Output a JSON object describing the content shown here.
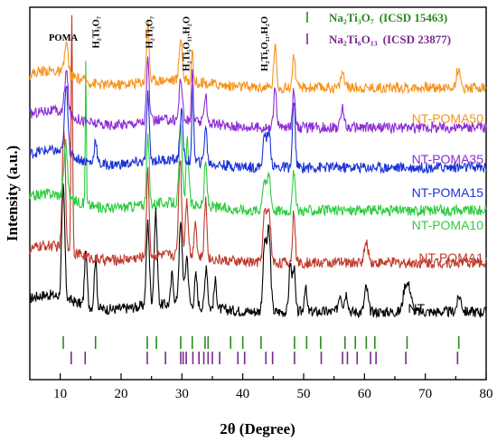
{
  "chart_data": {
    "type": "line",
    "xlabel": "2θ (Degree)",
    "ylabel": "Intensity (a.u.)",
    "xlim": [
      5,
      80
    ],
    "x_ticks": [
      10,
      20,
      30,
      40,
      50,
      60,
      70,
      80
    ],
    "grid": false,
    "series": [
      {
        "name": "NT",
        "color": "#000000",
        "baseline": 0.0,
        "noise": 0.35,
        "peaks": [
          [
            10.5,
            3.6,
            0.35
          ],
          [
            14.2,
            1.8,
            0.3
          ],
          [
            15.8,
            1.6,
            0.3
          ],
          [
            24.4,
            2.7,
            0.35
          ],
          [
            25.7,
            3.0,
            0.35
          ],
          [
            28.4,
            1.0,
            0.3
          ],
          [
            29.8,
            2.6,
            0.4
          ],
          [
            30.8,
            1.6,
            0.35
          ],
          [
            32.3,
            1.0,
            0.3
          ],
          [
            34.0,
            1.4,
            0.3
          ],
          [
            35.5,
            0.9,
            0.3
          ],
          [
            43.6,
            2.2,
            0.4
          ],
          [
            44.3,
            2.6,
            0.4
          ],
          [
            47.8,
            1.6,
            0.3
          ],
          [
            48.4,
            1.5,
            0.3
          ],
          [
            50.3,
            0.8,
            0.3
          ],
          [
            56.0,
            0.6,
            0.4
          ],
          [
            57.0,
            0.6,
            0.4
          ],
          [
            60.3,
            0.8,
            0.4
          ],
          [
            66.7,
            0.8,
            0.5
          ],
          [
            67.4,
            0.7,
            0.5
          ],
          [
            75.6,
            0.5,
            0.5
          ]
        ]
      },
      {
        "name": "NT-POMA1",
        "color": "#c0392b",
        "baseline": 1.6,
        "noise": 0.35,
        "peaks": [
          [
            10.6,
            4.0,
            0.35
          ],
          [
            11.9,
            7.7,
            0.18
          ],
          [
            24.4,
            2.8,
            0.3
          ],
          [
            29.7,
            3.2,
            0.35
          ],
          [
            30.8,
            1.8,
            0.35
          ],
          [
            32.2,
            1.2,
            0.3
          ],
          [
            33.9,
            1.9,
            0.3
          ],
          [
            43.6,
            1.6,
            0.4
          ],
          [
            44.3,
            1.7,
            0.4
          ],
          [
            48.4,
            1.7,
            0.3
          ],
          [
            60.3,
            0.6,
            0.5
          ]
        ]
      },
      {
        "name": "NT-POMA10",
        "color": "#2ecc40",
        "baseline": 3.3,
        "noise": 0.35,
        "peaks": [
          [
            10.9,
            1.8,
            0.4
          ],
          [
            14.2,
            4.8,
            0.12
          ],
          [
            24.4,
            2.2,
            0.3
          ],
          [
            29.8,
            2.4,
            0.35
          ],
          [
            30.9,
            2.1,
            0.3
          ],
          [
            33.9,
            1.4,
            0.3
          ],
          [
            43.5,
            1.0,
            0.4
          ],
          [
            44.3,
            1.2,
            0.4
          ],
          [
            48.4,
            1.3,
            0.3
          ]
        ]
      },
      {
        "name": "NT-POMA15",
        "color": "#1c33d6",
        "baseline": 4.7,
        "noise": 0.35,
        "peaks": [
          [
            11.0,
            2.2,
            0.4
          ],
          [
            15.8,
            0.8,
            0.3
          ],
          [
            24.4,
            2.2,
            0.3
          ],
          [
            29.9,
            1.6,
            0.35
          ],
          [
            31.8,
            2.6,
            0.2
          ],
          [
            33.9,
            1.2,
            0.3
          ],
          [
            43.6,
            1.0,
            0.4
          ],
          [
            44.3,
            1.1,
            0.4
          ],
          [
            48.4,
            2.2,
            0.3
          ]
        ]
      },
      {
        "name": "NT-POMA35",
        "color": "#8e2cd6",
        "baseline": 6.0,
        "noise": 0.35,
        "peaks": [
          [
            11.0,
            1.4,
            0.4
          ],
          [
            24.4,
            2.0,
            0.3
          ],
          [
            29.8,
            1.4,
            0.35
          ],
          [
            31.7,
            1.7,
            0.2
          ],
          [
            33.9,
            1.0,
            0.3
          ],
          [
            45.3,
            1.4,
            0.3
          ],
          [
            48.4,
            1.3,
            0.3
          ],
          [
            56.4,
            0.6,
            0.4
          ]
        ]
      },
      {
        "name": "NT-POMA50",
        "color": "#f7941d",
        "baseline": 7.3,
        "noise": 0.35,
        "peaks": [
          [
            11.0,
            1.0,
            0.4
          ],
          [
            24.4,
            1.9,
            0.3
          ],
          [
            29.8,
            1.4,
            0.35
          ],
          [
            31.7,
            1.1,
            0.2
          ],
          [
            45.3,
            1.4,
            0.3
          ],
          [
            48.4,
            1.1,
            0.3
          ],
          [
            56.4,
            0.5,
            0.4
          ],
          [
            75.4,
            0.6,
            0.4
          ]
        ]
      }
    ],
    "phase_annotations": [
      {
        "text": "POMA",
        "x": 10.5
      },
      {
        "text": "H₂Ti₃O₇",
        "x": 15.8
      },
      {
        "text": "H₂Ti₃O₇",
        "x": 24.5
      },
      {
        "text": "H₂Ti₅O₁₁.H₂O",
        "x": 30.6
      },
      {
        "text": "H₂Ti₅O₁₁.H₂O",
        "x": 43.5
      }
    ],
    "reference_patterns": [
      {
        "name": "Na₂Ti₃O₇",
        "source": "(ICSD 15463)",
        "color": "#2b8a1f",
        "positions": [
          10.5,
          15.8,
          24.3,
          25.8,
          29.8,
          31.7,
          33.8,
          34.3,
          38.0,
          40.0,
          43.0,
          48.5,
          50.5,
          52.8,
          56.8,
          58.5,
          60.3,
          61.7,
          67.0,
          75.5
        ]
      },
      {
        "name": "Na₂Ti₆O₁₃",
        "source": "(ICSD 23877)",
        "color": "#7a2a8f",
        "positions": [
          11.8,
          14.1,
          24.3,
          27.3,
          29.8,
          30.2,
          30.7,
          31.8,
          32.8,
          33.6,
          34.3,
          35.0,
          36.2,
          39.2,
          40.3,
          43.8,
          44.9,
          48.5,
          52.9,
          56.4,
          57.2,
          58.8,
          61.0,
          61.9,
          66.8,
          75.3
        ]
      }
    ]
  }
}
